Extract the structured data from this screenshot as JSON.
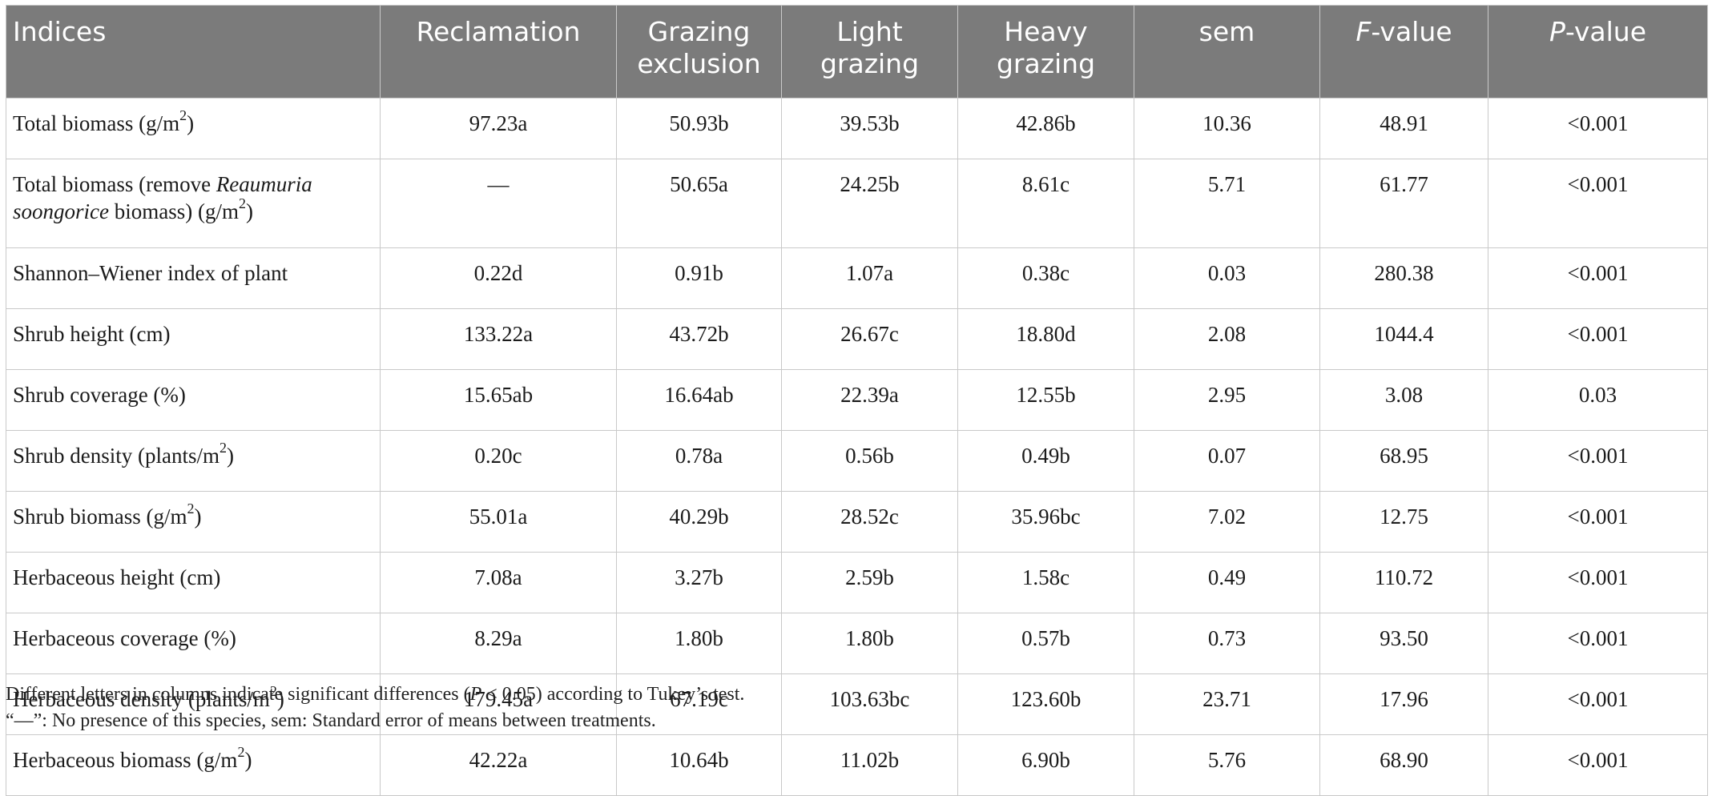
{
  "table": {
    "headers": [
      "Indices",
      "Reclamation",
      "Grazing\nexclusion",
      "Light\ngrazing",
      "Heavy\ngrazing",
      "sem",
      "F-value",
      "P-value"
    ],
    "header_italic_prefix": {
      "f": "F",
      "f_rest": "-value",
      "p": "P",
      "p_rest": "-value"
    },
    "rows": [
      {
        "label": "Total biomass (g/m",
        "sup": "2",
        "tail": ")",
        "values": [
          "97.23a",
          "50.93b",
          "39.53b",
          "42.86b",
          "10.36",
          "48.91",
          "<0.001"
        ]
      },
      {
        "label_a": "Total biomass (remove ",
        "label_italic": "Reaumuria soongorice",
        "label_b": " biomass) (g/m",
        "sup": "2",
        "tail": ")",
        "values": [
          "—",
          "50.65a",
          "24.25b",
          "8.61c",
          "5.71",
          "61.77",
          "<0.001"
        ]
      },
      {
        "label": "Shannon–Wiener index of plant",
        "sup": "",
        "tail": "",
        "values": [
          "0.22d",
          "0.91b",
          "1.07a",
          "0.38c",
          "0.03",
          "280.38",
          "<0.001"
        ]
      },
      {
        "label": "Shrub height (cm)",
        "sup": "",
        "tail": "",
        "values": [
          "133.22a",
          "43.72b",
          "26.67c",
          "18.80d",
          "2.08",
          "1044.4",
          "<0.001"
        ]
      },
      {
        "label": "Shrub coverage (%)",
        "sup": "",
        "tail": "",
        "values": [
          "15.65ab",
          "16.64ab",
          "22.39a",
          "12.55b",
          "2.95",
          "3.08",
          "0.03"
        ]
      },
      {
        "label": "Shrub density (plants/m",
        "sup": "2",
        "tail": ")",
        "values": [
          "0.20c",
          "0.78a",
          "0.56b",
          "0.49b",
          "0.07",
          "68.95",
          "<0.001"
        ]
      },
      {
        "label": "Shrub biomass (g/m",
        "sup": "2",
        "tail": ")",
        "values": [
          "55.01a",
          "40.29b",
          "28.52c",
          "35.96bc",
          "7.02",
          "12.75",
          "<0.001"
        ]
      },
      {
        "label": "Herbaceous height (cm)",
        "sup": "",
        "tail": "",
        "values": [
          "7.08a",
          "3.27b",
          "2.59b",
          "1.58c",
          "0.49",
          "110.72",
          "<0.001"
        ]
      },
      {
        "label": "Herbaceous coverage (%)",
        "sup": "",
        "tail": "",
        "values": [
          "8.29a",
          "1.80b",
          "1.80b",
          "0.57b",
          "0.73",
          "93.50",
          "<0.001"
        ]
      },
      {
        "label": "Herbaceous density (plants/m",
        "sup": "2",
        "tail": ")",
        "values": [
          "179.45a",
          "67.19c",
          "103.63bc",
          "123.60b",
          "23.71",
          "17.96",
          "<0.001"
        ]
      },
      {
        "label": "Herbaceous biomass (g/m",
        "sup": "2",
        "tail": ")",
        "values": [
          "42.22a",
          "10.64b",
          "11.02b",
          "6.90b",
          "5.76",
          "68.90",
          "<0.001"
        ]
      }
    ]
  },
  "notes": {
    "line1_a": "Different letters in columns indicate significant differences (",
    "line1_p": "P",
    "line1_b": " < 0.05) according to Tukey’s test.",
    "line2": "“—”: No presence of this species, sem: Standard error of means between treatments."
  }
}
